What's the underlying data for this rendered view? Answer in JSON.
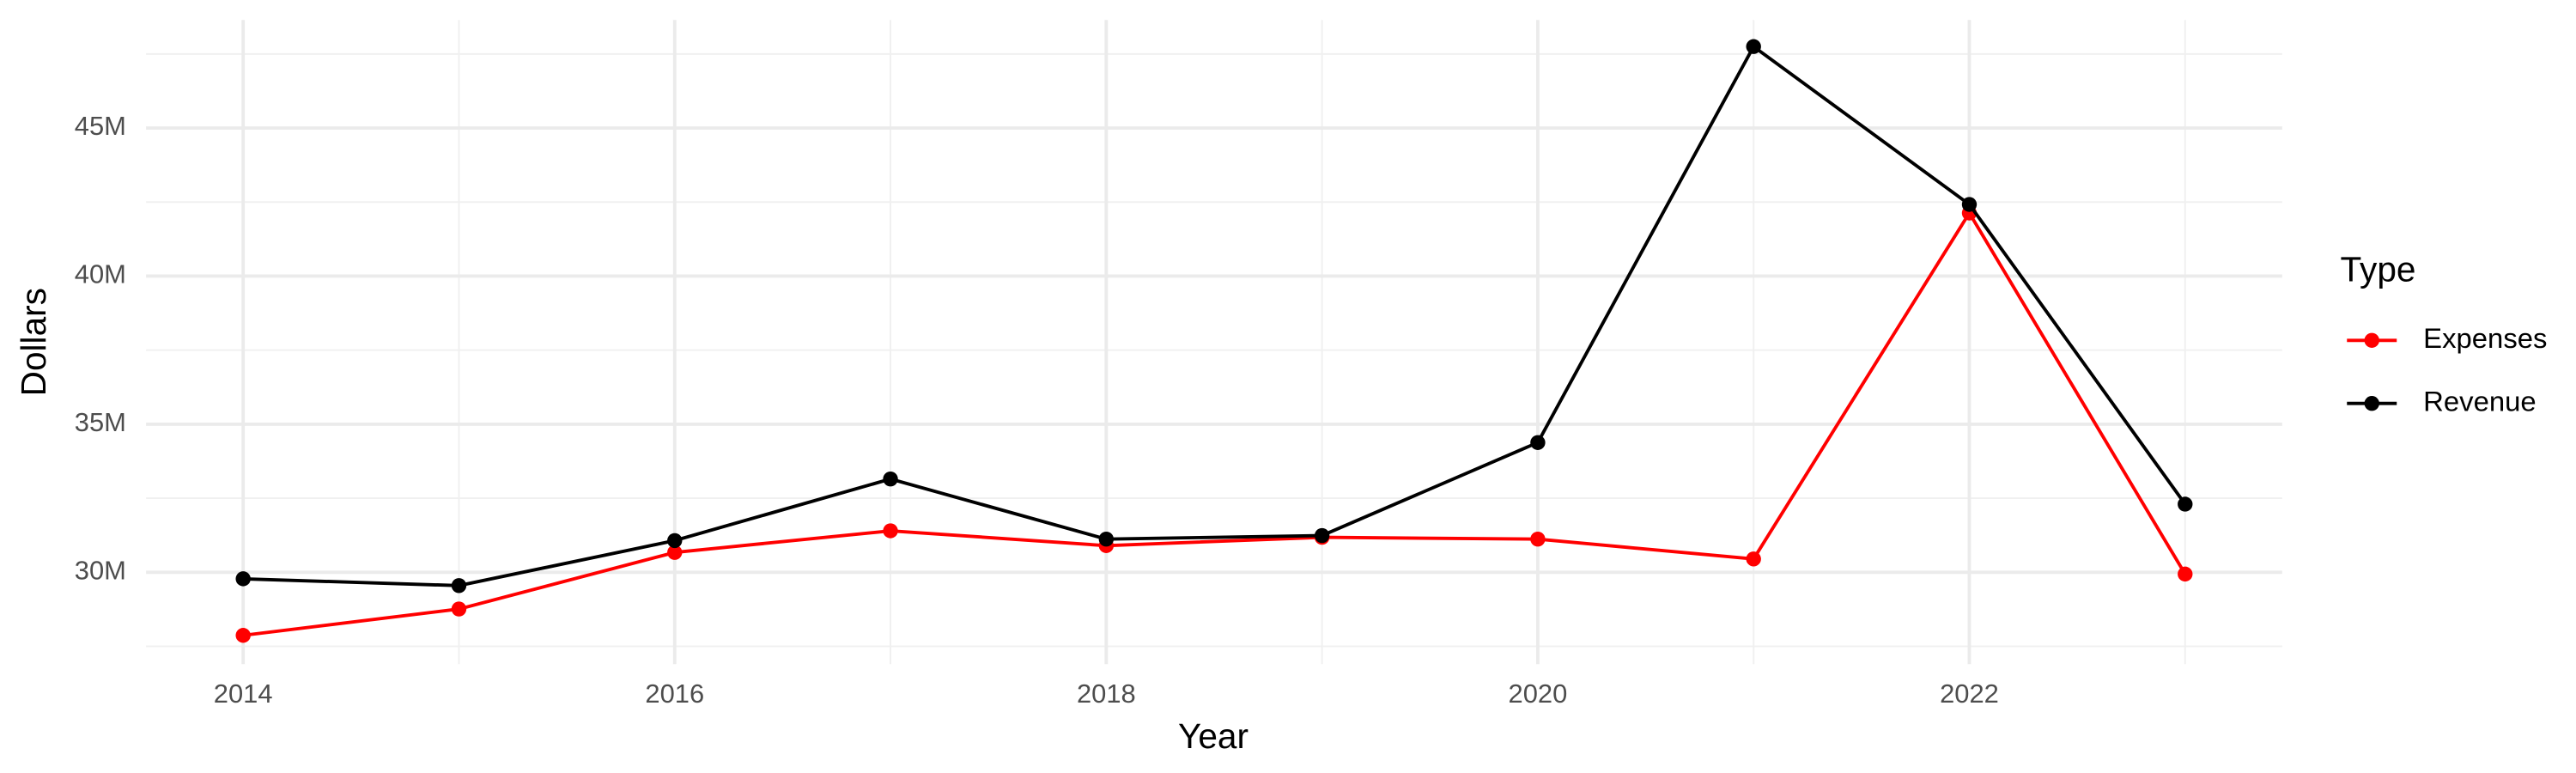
{
  "chart_data": {
    "type": "line",
    "x_label": "Year",
    "y_label": "Dollars",
    "legend_title": "Type",
    "x": [
      2014,
      2015,
      2016,
      2017,
      2018,
      2019,
      2020,
      2021,
      2022,
      2023
    ],
    "series": [
      {
        "name": "Expenses",
        "color": "#ff0000",
        "values": [
          27870000,
          28760000,
          30670000,
          31400000,
          30900000,
          31180000,
          31120000,
          30450000,
          42130000,
          29940000
        ]
      },
      {
        "name": "Revenue",
        "color": "#000000",
        "values": [
          29780000,
          29550000,
          31070000,
          33150000,
          31120000,
          31240000,
          34380000,
          47750000,
          42420000,
          32300000
        ]
      }
    ],
    "xlim": [
      2013.55,
      2023.45
    ],
    "xticks": [
      2014,
      2016,
      2018,
      2020,
      2022
    ],
    "ylim": [
      26900000,
      48650000
    ],
    "yticks": [
      {
        "value": 30000000,
        "label": "30M"
      },
      {
        "value": 35000000,
        "label": "35M"
      },
      {
        "value": 40000000,
        "label": "40M"
      },
      {
        "value": 45000000,
        "label": "45M"
      }
    ],
    "grid": true,
    "legend": "right"
  }
}
